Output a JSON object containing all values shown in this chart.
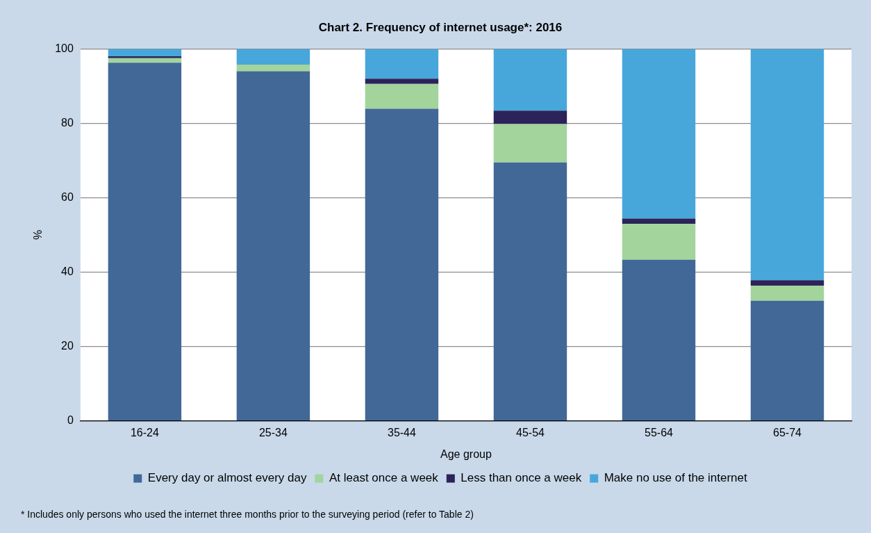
{
  "chart_data": {
    "type": "bar",
    "title": "Chart 2. Frequency of internet usage*: 2016",
    "xlabel": "Age group",
    "ylabel": "%",
    "categories": [
      "16-24",
      "25-34",
      "35-44",
      "45-54",
      "55-64",
      "65-74"
    ],
    "stacked": true,
    "series": [
      {
        "name": "Every day or almost every day",
        "color": "#416897",
        "values": [
          96.3,
          94.0,
          83.9,
          69.5,
          43.3,
          32.3
        ]
      },
      {
        "name": "At least once a week",
        "color": "#a2d49c",
        "values": [
          1.2,
          1.8,
          6.7,
          10.3,
          9.7,
          4.0
        ]
      },
      {
        "name": "Less than once a week",
        "color": "#2b2359",
        "values": [
          0.5,
          0,
          1.4,
          3.6,
          1.4,
          1.5
        ]
      },
      {
        "name": "Make no use of the internet",
        "color": "#47a7db",
        "values": [
          2.0,
          4.2,
          8.0,
          16.6,
          45.6,
          62.2
        ]
      }
    ],
    "ylim": [
      0,
      100
    ],
    "yticks": [
      0,
      20,
      40,
      60,
      80,
      100
    ],
    "grid": "y",
    "legend": "bottom",
    "annotations": [
      "* Includes only persons who used the internet three months prior to the surveying period (refer to Table 2)"
    ]
  }
}
